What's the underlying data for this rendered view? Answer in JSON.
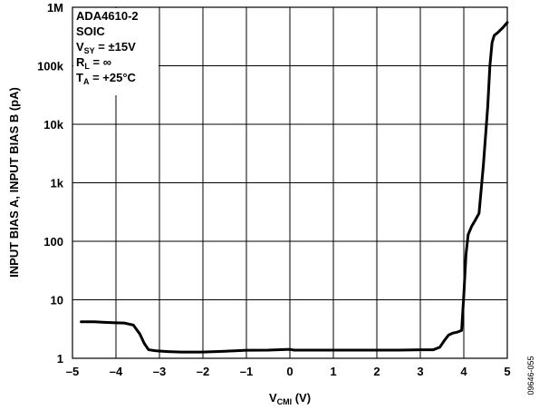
{
  "chart_data": {
    "type": "line",
    "title": "",
    "xlabel": {
      "main": "V",
      "sub": "CMI",
      "unit": " (V)"
    },
    "ylabel": "INPUT BIAS A, INPUT BIAS B (pA)",
    "xlim": [
      -5,
      5
    ],
    "ylim": [
      1,
      1000000
    ],
    "yscale": "log",
    "grid": true,
    "x_ticks": [
      -5,
      -4,
      -3,
      -2,
      -1,
      0,
      1,
      2,
      3,
      4,
      5
    ],
    "x_tick_labels": [
      "–5",
      "–4",
      "–3",
      "–2",
      "–1",
      "0",
      "1",
      "2",
      "3",
      "4",
      "5"
    ],
    "y_ticks": [
      1,
      10,
      100,
      1000,
      10000,
      100000,
      1000000
    ],
    "y_tick_labels": [
      "1",
      "10",
      "100",
      "1k",
      "10k",
      "100k",
      "1M"
    ],
    "annotation_lines": [
      {
        "text": "ADA4610-2",
        "sub": "",
        "tail": ""
      },
      {
        "text": "SOIC",
        "sub": "",
        "tail": ""
      },
      {
        "text": "V",
        "sub": "SY",
        "tail": " = ±15V"
      },
      {
        "text": "R",
        "sub": "L",
        "tail": " = ∞"
      },
      {
        "text": "T",
        "sub": "A",
        "tail": " = +25°C"
      }
    ],
    "figure_id": "09646-055",
    "series": [
      {
        "color": "#000000",
        "x": [
          -4.8,
          -4.5,
          -4.2,
          -4.0,
          -3.8,
          -3.6,
          -3.45,
          -3.35,
          -3.25,
          -3.1,
          -3.0,
          -2.8,
          -2.5,
          -2.0,
          -1.5,
          -1.0,
          -0.5,
          0.0,
          0.1,
          0.5,
          1.0,
          1.5,
          2.0,
          2.5,
          3.0,
          3.3,
          3.45,
          3.55,
          3.65,
          3.75,
          3.85,
          3.95,
          4.0,
          4.05,
          4.1,
          4.18,
          4.25,
          4.35,
          4.45,
          4.55,
          4.6,
          4.65,
          4.7,
          4.8,
          4.9,
          5.0
        ],
        "y": [
          4.2,
          4.2,
          4.1,
          4.05,
          4.0,
          3.7,
          2.6,
          1.8,
          1.4,
          1.35,
          1.33,
          1.3,
          1.28,
          1.28,
          1.32,
          1.37,
          1.38,
          1.42,
          1.38,
          1.38,
          1.38,
          1.38,
          1.38,
          1.38,
          1.4,
          1.4,
          1.55,
          2.0,
          2.5,
          2.7,
          2.8,
          3.0,
          12,
          60,
          130,
          180,
          220,
          300,
          2000,
          20000,
          100000,
          250000,
          330000,
          380000,
          450000,
          550000
        ]
      }
    ]
  }
}
